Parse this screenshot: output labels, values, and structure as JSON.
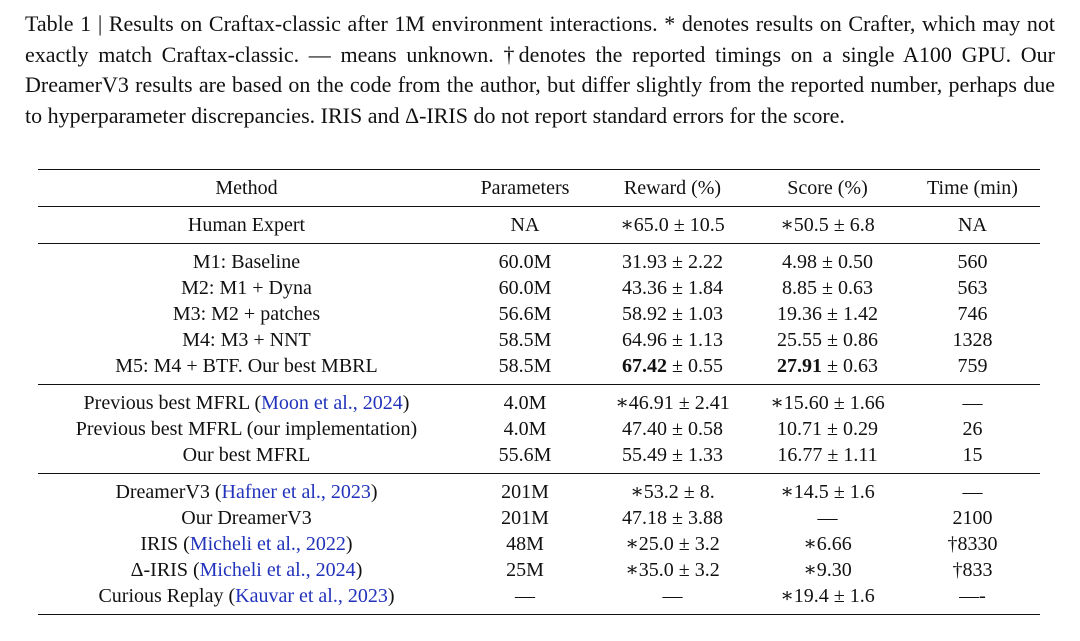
{
  "caption": "Table 1 | Results on Craftax-classic after 1M environment interactions. * denotes results on Crafter, which may not exactly match Craftax-classic. — means unknown. †denotes the reported timings on a single A100 GPU. Our DreamerV3 results are based on the code from the author, but differ slightly from the reported number, perhaps due to hyperparameter discrepancies. IRIS and Δ-IRIS do not report standard errors for the score.",
  "table": {
    "header": [
      "Method",
      "Parameters",
      "Reward (%)",
      "Score (%)",
      "Time (min)"
    ],
    "groups": [
      {
        "rows": [
          {
            "cells": [
              "Human Expert",
              "NA",
              "∗65.0 ± 10.5",
              "∗50.5 ± 6.8",
              "NA"
            ]
          }
        ]
      },
      {
        "rows": [
          {
            "cells": [
              "M1: Baseline",
              "60.0M",
              "31.93 ± 2.22",
              "4.98 ± 0.50",
              "560"
            ]
          },
          {
            "cells": [
              "M2: M1 + Dyna",
              "60.0M",
              "43.36 ± 1.84",
              "8.85 ± 0.63",
              "563"
            ]
          },
          {
            "cells": [
              "M3: M2 + patches",
              "56.6M",
              "58.92 ± 1.03",
              "19.36 ± 1.42",
              "746"
            ]
          },
          {
            "cells": [
              "M4: M3 + NNT",
              "58.5M",
              "64.96 ± 1.13",
              "25.55 ± 0.86",
              "1328"
            ]
          },
          {
            "cells": [
              "M5: M4 + BTF. Our best MBRL",
              "58.5M",
              {
                "bold": "67.42",
                "rest": " ± 0.55"
              },
              {
                "bold": "27.91",
                "rest": " ± 0.63"
              },
              "759"
            ]
          }
        ]
      },
      {
        "rows": [
          {
            "cells": [
              {
                "text": "Previous best MFRL (",
                "cite": "Moon et al., 2024",
                "after": ")"
              },
              "4.0M",
              "∗46.91 ± 2.41",
              "∗15.60 ± 1.66",
              "—"
            ]
          },
          {
            "cells": [
              "Previous best MFRL (our implementation)",
              "4.0M",
              "47.40 ± 0.58",
              "10.71 ± 0.29",
              "26"
            ]
          },
          {
            "cells": [
              "Our best MFRL",
              "55.6M",
              "55.49 ± 1.33",
              "16.77 ± 1.11",
              "15"
            ]
          }
        ]
      },
      {
        "rows": [
          {
            "cells": [
              {
                "text": "DreamerV3 (",
                "cite": "Hafner et al., 2023",
                "after": ")"
              },
              "201M",
              "∗53.2 ± 8.",
              "∗14.5 ± 1.6",
              "—"
            ]
          },
          {
            "cells": [
              "Our DreamerV3",
              "201M",
              "47.18 ± 3.88",
              "—",
              "2100"
            ]
          },
          {
            "cells": [
              {
                "text": "IRIS (",
                "cite": "Micheli et al., 2022",
                "after": ")"
              },
              "48M",
              "∗25.0 ± 3.2",
              "∗6.66",
              "†8330"
            ]
          },
          {
            "cells": [
              {
                "text": "Δ-IRIS (",
                "cite": "Micheli et al., 2024",
                "after": ")"
              },
              "25M",
              "∗35.0 ± 3.2",
              "∗9.30",
              "†833"
            ]
          },
          {
            "cells": [
              {
                "text": "Curious Replay (",
                "cite": "Kauvar et al., 2023",
                "after": ")"
              },
              "—",
              "—",
              "∗19.4 ± 1.6",
              "—-"
            ]
          }
        ]
      }
    ]
  }
}
